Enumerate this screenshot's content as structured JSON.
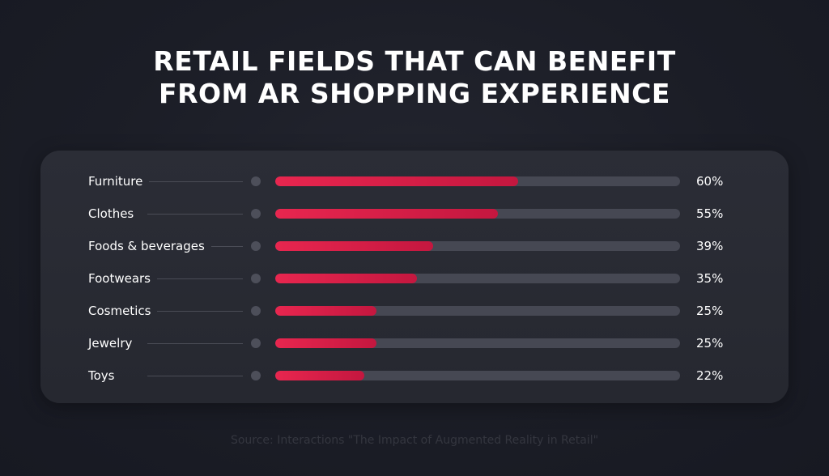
{
  "title": {
    "line1": "RETAIL FIELDS THAT CAN BENEFIT",
    "line2": "FROM AR SHOPPING EXPERIENCE"
  },
  "colors": {
    "background": "#1b1d26",
    "panel": "#2a2c35",
    "bar_fill": "#e8264f",
    "bar_track": "#464853",
    "text": "#ffffff"
  },
  "chart_data": {
    "type": "bar",
    "orientation": "horizontal",
    "title": "RETAIL FIELDS THAT CAN BENEFIT FROM AR SHOPPING EXPERIENCE",
    "categories": [
      "Furniture",
      "Clothes",
      "Foods & beverages",
      "Footwears",
      "Cosmetics",
      "Jewelry",
      "Toys"
    ],
    "values": [
      60,
      55,
      39,
      35,
      25,
      25,
      22
    ],
    "value_labels": [
      "60%",
      "55%",
      "39%",
      "35%",
      "25%",
      "25%",
      "22%"
    ],
    "unit": "%",
    "xlim": [
      0,
      100
    ],
    "grid": false,
    "legend": "none"
  },
  "source": "Source: Interactions \"The Impact of Augmented Reality in Retail\""
}
